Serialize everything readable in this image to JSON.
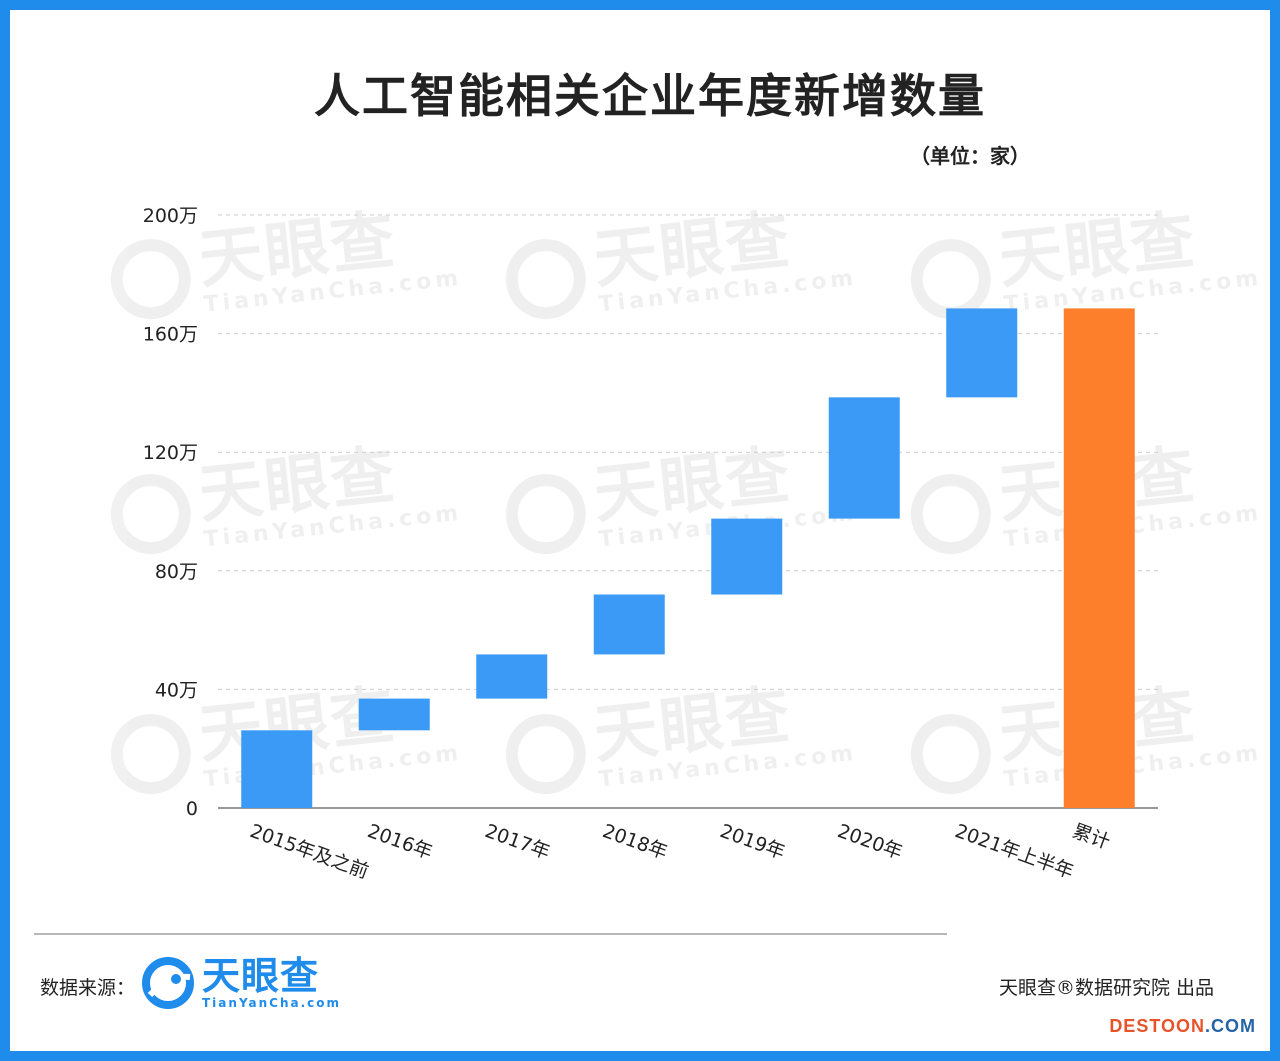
{
  "title": "人工智能相关企业年度新增数量",
  "unit_label": "（单位：家）",
  "watermark": {
    "cn": "天眼查",
    "en": "TianYanCha.com"
  },
  "footer": {
    "source_label": "数据来源：",
    "logo_cn": "天眼查",
    "logo_en": "TianYanCha.com",
    "producer": "天眼查®数据研究院 出品",
    "site_part1": "DESTOON",
    "site_part2": ".COM"
  },
  "colors": {
    "frame": "#1f8ceb",
    "increase_bar": "#3a9af5",
    "total_bar": "#fd7e2b",
    "grid": "#cccccc",
    "axis": "#999999"
  },
  "chart_data": {
    "type": "bar",
    "subtype": "waterfall",
    "title": "人工智能相关企业年度新增数量",
    "unit": "（单位：家）",
    "categories": [
      "2015年及之前",
      "2016年",
      "2017年",
      "2018年",
      "2019年",
      "2020年",
      "2021年上半年",
      "累计"
    ],
    "start": [
      0,
      262000,
      369000,
      518000,
      720000,
      976000,
      1385000,
      0
    ],
    "end": [
      262000,
      369000,
      518000,
      720000,
      976000,
      1385000,
      1685000,
      1685000
    ],
    "bar_kind": [
      "increase",
      "increase",
      "increase",
      "increase",
      "increase",
      "increase",
      "increase",
      "total"
    ],
    "ylim": [
      0,
      2000000
    ],
    "yticks": [
      0,
      400000,
      800000,
      1200000,
      1600000,
      2000000
    ],
    "ytick_labels": [
      "0",
      "40万",
      "80万",
      "120万",
      "160万",
      "200万"
    ],
    "grid": true,
    "grid_style": "dashed",
    "legend": "none"
  }
}
